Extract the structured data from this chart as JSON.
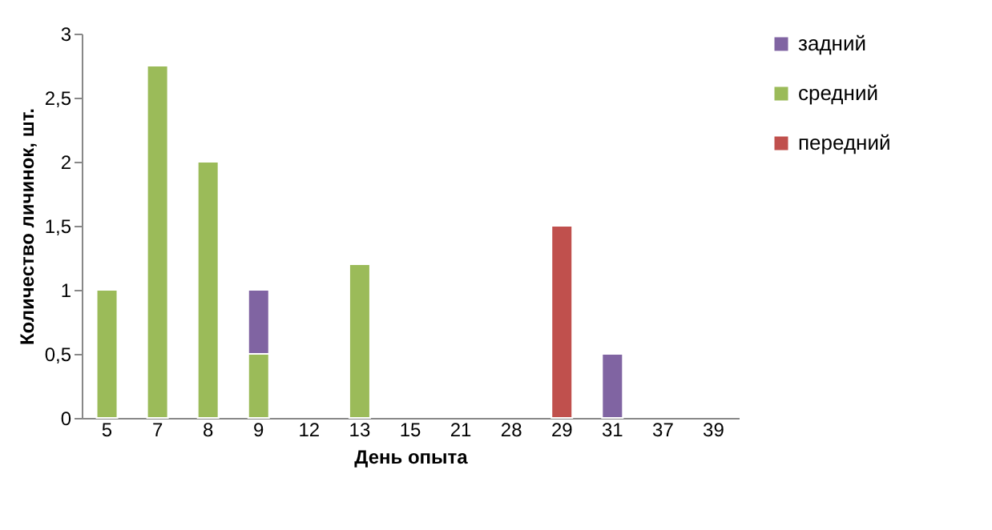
{
  "chart_data": {
    "type": "bar",
    "stacked": true,
    "xlabel": "День опыта",
    "ylabel": "Количество личинок, шт.",
    "categories": [
      "5",
      "7",
      "8",
      "9",
      "12",
      "13",
      "15",
      "21",
      "28",
      "29",
      "31",
      "37",
      "39"
    ],
    "series": [
      {
        "name": "передний",
        "color": "#c0504d",
        "values": [
          null,
          null,
          null,
          null,
          null,
          null,
          null,
          null,
          null,
          1.5,
          null,
          null,
          null
        ]
      },
      {
        "name": "средний",
        "color": "#9bbb59",
        "values": [
          1,
          2.75,
          2,
          0.5,
          null,
          1.2,
          null,
          null,
          null,
          null,
          null,
          null,
          null
        ]
      },
      {
        "name": "задний",
        "color": "#8064a2",
        "values": [
          null,
          null,
          null,
          0.5,
          null,
          null,
          null,
          null,
          null,
          null,
          0.5,
          null,
          null
        ]
      }
    ],
    "ylim": [
      0,
      3
    ],
    "yticks": [
      0,
      {
        "value": 0.5,
        "label": "0,5"
      },
      1,
      {
        "value": 1.5,
        "label": "1,5"
      },
      2,
      {
        "value": 2.5,
        "label": "2,5"
      },
      3
    ],
    "grid": false,
    "legend": "right"
  }
}
